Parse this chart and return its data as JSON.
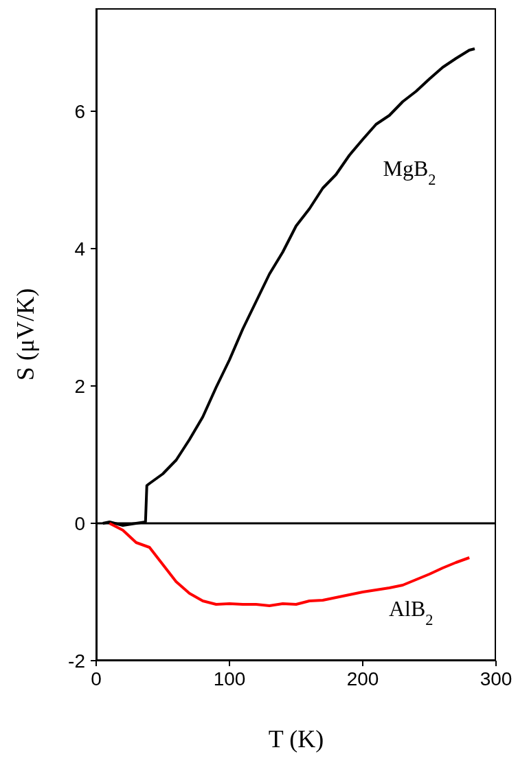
{
  "chart_data": {
    "type": "line",
    "xlabel": "T (K)",
    "ylabel": "S (μV/K)",
    "xlim": [
      0,
      300
    ],
    "ylim": [
      -2,
      7.5
    ],
    "xticks": [
      0,
      100,
      200,
      300
    ],
    "yticks": [
      -2,
      0,
      2,
      4,
      6
    ],
    "grid": false,
    "marker": "none",
    "line_style": "solid",
    "ref_lines": [
      {
        "axis": "y",
        "value": 0,
        "color": "#000000"
      }
    ],
    "series": [
      {
        "name": "MgB$_{2}$",
        "color": "#000000",
        "x": [
          5,
          10,
          20,
          30,
          37,
          38,
          40,
          50,
          60,
          70,
          80,
          90,
          100,
          110,
          120,
          130,
          140,
          150,
          160,
          170,
          180,
          190,
          200,
          210,
          220,
          230,
          240,
          250,
          260,
          270,
          280,
          284
        ],
        "values": [
          0,
          0.02,
          -0.03,
          0,
          0.02,
          0.55,
          0.58,
          0.72,
          0.92,
          1.22,
          1.55,
          1.98,
          2.38,
          2.83,
          3.23,
          3.63,
          3.95,
          4.33,
          4.58,
          4.88,
          5.08,
          5.36,
          5.59,
          5.81,
          5.94,
          6.14,
          6.29,
          6.47,
          6.64,
          6.77,
          6.89,
          6.91
        ]
      },
      {
        "name": "AlB$_{2}$",
        "color": "#ff0000",
        "x": [
          10,
          20,
          30,
          40,
          50,
          60,
          70,
          80,
          90,
          100,
          110,
          120,
          130,
          140,
          150,
          160,
          170,
          180,
          190,
          200,
          210,
          220,
          230,
          240,
          250,
          260,
          270,
          280
        ],
        "values": [
          0,
          -0.1,
          -0.28,
          -0.35,
          -0.6,
          -0.85,
          -1.02,
          -1.13,
          -1.18,
          -1.17,
          -1.18,
          -1.18,
          -1.2,
          -1.17,
          -1.18,
          -1.13,
          -1.12,
          -1.08,
          -1.04,
          -1.0,
          -0.97,
          -0.94,
          -0.9,
          -0.82,
          -0.74,
          -0.65,
          -0.57,
          -0.5
        ]
      }
    ]
  }
}
